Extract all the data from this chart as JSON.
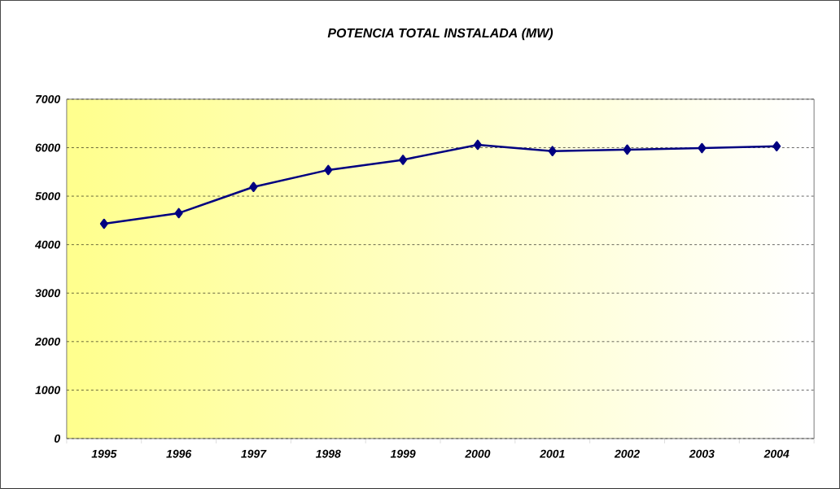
{
  "chart_data": {
    "type": "line",
    "title": "POTENCIA TOTAL INSTALADA (MW)",
    "categories": [
      "1995",
      "1996",
      "1997",
      "1998",
      "1999",
      "2000",
      "2001",
      "2002",
      "2003",
      "2004"
    ],
    "values": [
      4430,
      4650,
      5190,
      5540,
      5750,
      6060,
      5930,
      5960,
      5990,
      6030
    ],
    "color": "#000080",
    "marker": "diamond",
    "line_style": "solid",
    "ylim": [
      0,
      7000
    ],
    "yticks": [
      0,
      1000,
      2000,
      3000,
      4000,
      5000,
      6000,
      7000
    ],
    "grid": "y"
  }
}
